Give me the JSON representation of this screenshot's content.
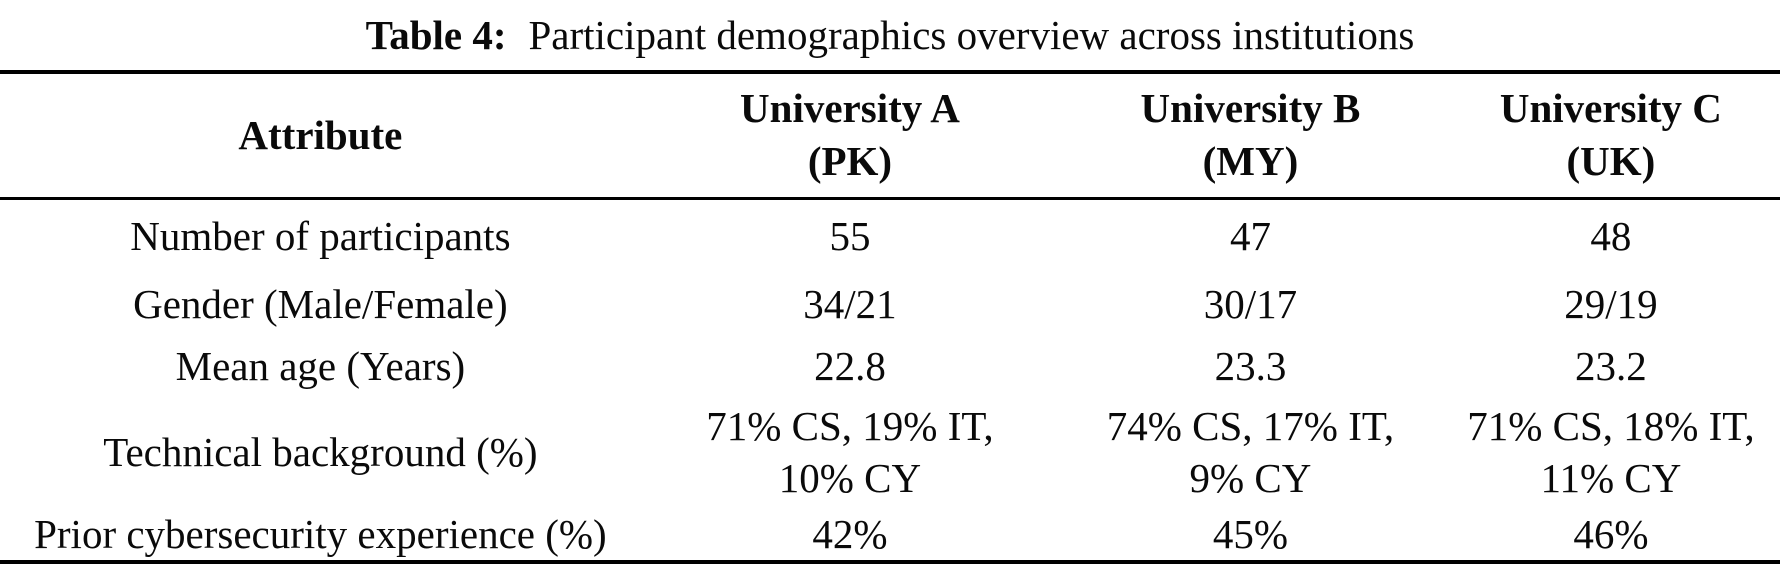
{
  "caption": {
    "number": "Table 4:",
    "text": "Participant demographics overview across institutions"
  },
  "table": {
    "columns": [
      {
        "name": "Attribute",
        "sub": ""
      },
      {
        "name": "University A",
        "sub": "(PK)"
      },
      {
        "name": "University B",
        "sub": "(MY)"
      },
      {
        "name": "University C",
        "sub": "(UK)"
      }
    ],
    "rows": [
      {
        "attribute": "Number of participants",
        "values": [
          "55",
          "47",
          "48"
        ]
      },
      {
        "attribute": "Gender (Male/Female)",
        "values": [
          "34/21",
          "30/17",
          "29/19"
        ]
      },
      {
        "attribute": "Mean age (Years)",
        "values": [
          "22.8",
          "23.3",
          "23.2"
        ]
      },
      {
        "attribute": "Technical background (%)",
        "values": [
          "71% CS, 19% IT,\n10% CY",
          "74% CS, 17% IT,\n9% CY",
          "71% CS, 18% IT,\n11% CY"
        ]
      },
      {
        "attribute": "Prior cybersecurity experience (%)",
        "values": [
          "42%",
          "45%",
          "46%"
        ]
      }
    ]
  },
  "colors": {
    "text": "#0a0a0a",
    "rule": "#000000",
    "background": "#ffffff"
  }
}
